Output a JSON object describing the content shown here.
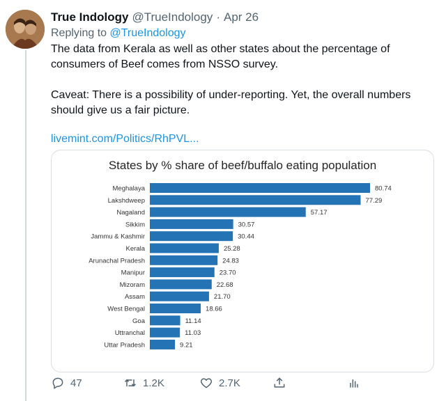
{
  "tweet": {
    "display_name": "True Indology",
    "handle": "@TrueIndology",
    "separator": "·",
    "date": "Apr 26",
    "replying_prefix": "Replying to",
    "replying_to": "@TrueIndology",
    "paragraph_1_line_1": "The data from Kerala as well as other states about the percentage of",
    "paragraph_1_line_2": "consumers of Beef comes from NSSO survey.",
    "paragraph_2_line_1": "Caveat: There is a possibility of under-reporting. Yet, the overall numbers",
    "paragraph_2_line_2": "should give us a fair picture.",
    "link": "livemint.com/Politics/RhPVL..."
  },
  "actions": {
    "reply_count": "47",
    "retweet_count": "1.2K",
    "like_count": "2.7K",
    "reply_icon": "reply-icon",
    "retweet_icon": "retweet-icon",
    "like_icon": "heart-icon",
    "share_icon": "share-icon",
    "analytics_icon": "analytics-icon"
  },
  "chart_data": {
    "type": "bar",
    "orientation": "horizontal",
    "title": "States by % share of beef/buffalo eating population",
    "categories": [
      "Meghalaya",
      "Lakshdweep",
      "Nagaland",
      "Sikkim",
      "Jammu & Kashmir",
      "Kerala",
      "Arunachal Pradesh",
      "Manipur",
      "Mizoram",
      "Assam",
      "West Bengal",
      "Goa",
      "Uttranchal",
      "Uttar Pradesh"
    ],
    "values": [
      80.74,
      77.29,
      57.17,
      30.57,
      30.44,
      25.28,
      24.83,
      23.7,
      22.68,
      21.7,
      18.66,
      11.14,
      11.03,
      9.21
    ],
    "value_labels": [
      "80.74",
      "77.29",
      "57.17",
      "30.57",
      "30.44",
      "25.28",
      "24.83",
      "23.70",
      "22.68",
      "21.70",
      "18.66",
      "11.14",
      "11.03",
      "9.21"
    ],
    "xlim": [
      0,
      80.74
    ],
    "bar_color": "#2474b5",
    "grid": false,
    "legend": "none"
  },
  "colors": {
    "link": "#1b95e0",
    "muted": "#536471",
    "bar": "#2474b5"
  }
}
